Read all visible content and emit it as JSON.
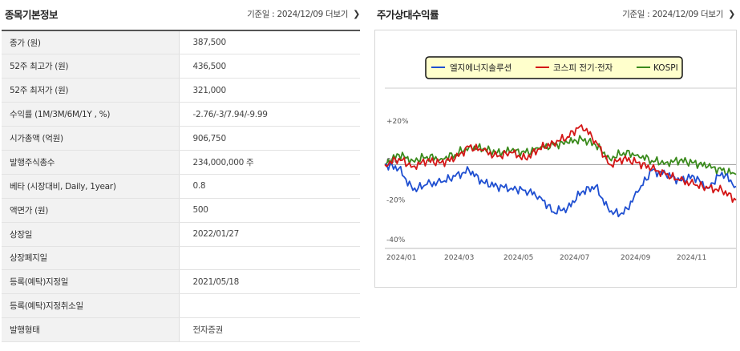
{
  "left_panel": {
    "title": "종목기본정보",
    "base_date": "기준일 : 2024/12/09",
    "more": "더보기",
    "rows": [
      {
        "label": "종가 (원)",
        "value": "387,500"
      },
      {
        "label": "52주 최고가 (원)",
        "value": "436,500"
      },
      {
        "label": "52주 최저가 (원)",
        "value": "321,000"
      },
      {
        "label": "수익률 (1M/3M/6M/1Y , %)",
        "value": "-2.76/-3/7.94/-9.99"
      },
      {
        "label": "시가총액 (억원)",
        "value": "906,750"
      },
      {
        "label": "발행주식총수",
        "value": "234,000,000 주"
      },
      {
        "label": "베타 (시장대비, Daily, 1year)",
        "value": "0.8"
      },
      {
        "label": "액면가 (원)",
        "value": "500"
      },
      {
        "label": "상장일",
        "value": "2022/01/27"
      },
      {
        "label": "상장폐지일",
        "value": ""
      },
      {
        "label": "등록(예탁)지정일",
        "value": "2021/05/18"
      },
      {
        "label": "등록(예탁)지정취소일",
        "value": ""
      },
      {
        "label": "발행형태",
        "value": "전자증권"
      }
    ]
  },
  "right_panel": {
    "title": "주가상대수익률",
    "base_date": "기준일 : 2024/12/09",
    "more": "더보기"
  },
  "chart_data": {
    "type": "line",
    "title": "",
    "ylabel": "",
    "xlabel": "",
    "ylim": [
      -40,
      20
    ],
    "yticks": [
      "+20%",
      "0%",
      "-20%",
      "-40%"
    ],
    "ytick_values": [
      20,
      0,
      -20,
      -40
    ],
    "xticks": [
      "2024/01",
      "2024/03",
      "2024/05",
      "2024/07",
      "2024/09",
      "2024/11"
    ],
    "legend_position": "top-center",
    "grid": false,
    "x": [
      "2024/01/02",
      "2024/01/16",
      "2024/01/30",
      "2024/02/13",
      "2024/02/27",
      "2024/03/12",
      "2024/03/26",
      "2024/04/09",
      "2024/04/23",
      "2024/05/07",
      "2024/05/21",
      "2024/06/04",
      "2024/06/18",
      "2024/07/02",
      "2024/07/16",
      "2024/07/30",
      "2024/08/05",
      "2024/08/20",
      "2024/09/03",
      "2024/09/17",
      "2024/10/01",
      "2024/10/15",
      "2024/10/29",
      "2024/11/12",
      "2024/11/26",
      "2024/12/09"
    ],
    "series": [
      {
        "name": "엘지에너지솔루션",
        "color": "#1f4fd1",
        "values": [
          0,
          -2,
          -13,
          -10,
          -9,
          -6,
          -3,
          -9,
          -11,
          -12,
          -13,
          -16,
          -24,
          -22,
          -14,
          -11,
          -24,
          -25,
          -14,
          -3,
          -5,
          -8,
          -6,
          -12,
          -4,
          -11
        ]
      },
      {
        "name": "코스피 전기·전자",
        "color": "#d41616",
        "values": [
          0,
          3,
          -1,
          2,
          1,
          3,
          9,
          7,
          4,
          6,
          3,
          8,
          11,
          14,
          20,
          12,
          0,
          3,
          1,
          -2,
          -5,
          -8,
          -10,
          -12,
          -13,
          -18
        ]
      },
      {
        "name": "KOSPI",
        "color": "#3a8a1c",
        "values": [
          0,
          5,
          2,
          4,
          3,
          5,
          9,
          8,
          6,
          7,
          6,
          8,
          10,
          11,
          13,
          10,
          3,
          6,
          5,
          2,
          1,
          2,
          1,
          -1,
          -3,
          -5
        ]
      }
    ]
  }
}
